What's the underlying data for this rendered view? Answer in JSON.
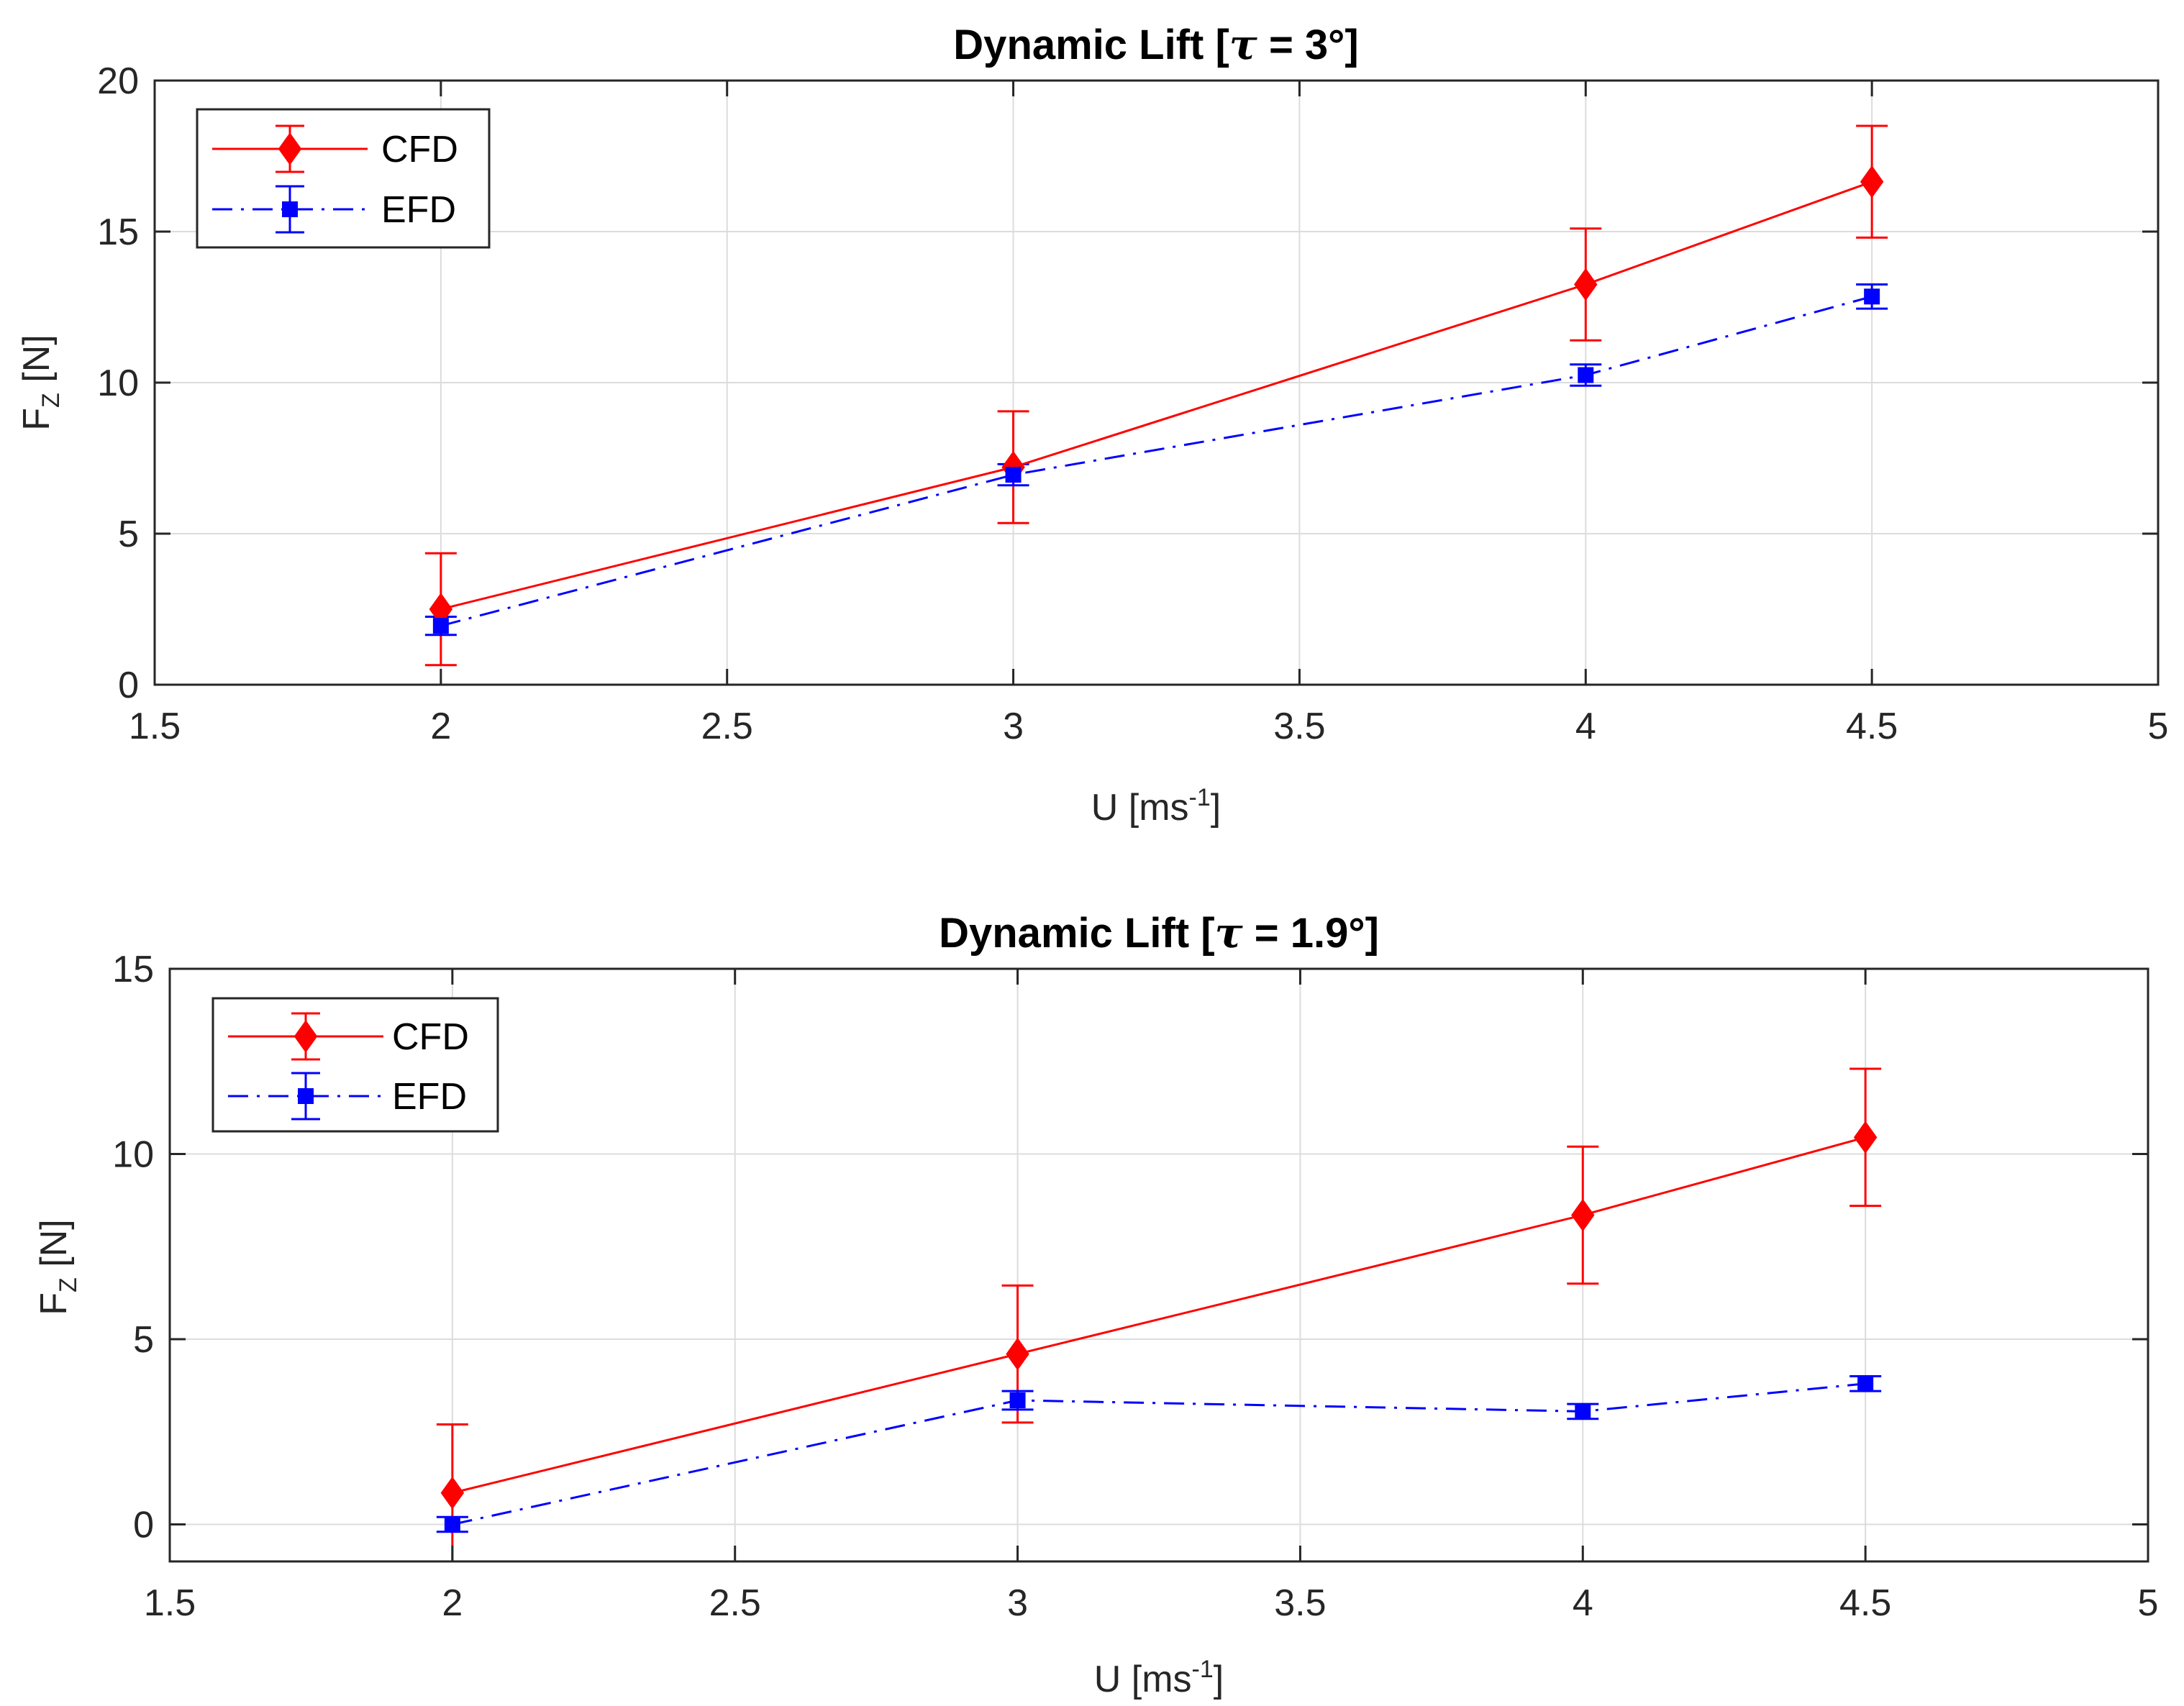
{
  "chart_data": [
    {
      "type": "line",
      "title_prefix": "Dynamic Lift [",
      "title_symbol": "τ",
      "title_suffix": " = 3°]",
      "xlabel": "U [ms",
      "xlabel_sup": "-1",
      "xlabel_end": "]",
      "ylabel": "F",
      "ylabel_sub": "Z",
      "ylabel_end": " [N]",
      "xlim": [
        1.5,
        5
      ],
      "ylim": [
        0,
        20
      ],
      "xticks": [
        1.5,
        2,
        2.5,
        3,
        3.5,
        4,
        4.5,
        5
      ],
      "yticks": [
        0,
        5,
        10,
        15,
        20
      ],
      "xtick_labels": [
        "1.5",
        "2",
        "2.5",
        "3",
        "3.5",
        "4",
        "4.5",
        "5"
      ],
      "ytick_labels": [
        "0",
        "5",
        "10",
        "15",
        "20"
      ],
      "grid": true,
      "legend_position": "top-left",
      "series": [
        {
          "name": "CFD",
          "color": "#ff0000",
          "style": "solid",
          "marker": "diamond",
          "x": [
            2,
            3,
            4,
            4.5
          ],
          "values": [
            2.5,
            7.2,
            13.25,
            16.65
          ],
          "error": [
            1.85,
            1.85,
            1.85,
            1.85
          ]
        },
        {
          "name": "EFD",
          "color": "#0000ff",
          "style": "dashdot",
          "marker": "square",
          "x": [
            2,
            3,
            4,
            4.5
          ],
          "values": [
            1.95,
            6.95,
            10.25,
            12.85
          ],
          "error": [
            0.3,
            0.35,
            0.35,
            0.4
          ]
        }
      ]
    },
    {
      "type": "line",
      "title_prefix": "Dynamic Lift [",
      "title_symbol": "τ",
      "title_suffix": " = 1.9°]",
      "xlabel": "U [ms",
      "xlabel_sup": "-1",
      "xlabel_end": "]",
      "ylabel": "F",
      "ylabel_sub": "Z",
      "ylabel_end": " [N]",
      "xlim": [
        1.5,
        5
      ],
      "ylim": [
        -1,
        15
      ],
      "xticks": [
        1.5,
        2,
        2.5,
        3,
        3.5,
        4,
        4.5,
        5
      ],
      "yticks": [
        0,
        5,
        10,
        15
      ],
      "xtick_labels": [
        "1.5",
        "2",
        "2.5",
        "3",
        "3.5",
        "4",
        "4.5",
        "5"
      ],
      "ytick_labels": [
        "0",
        "5",
        "10",
        "15"
      ],
      "grid": true,
      "legend_position": "top-left",
      "series": [
        {
          "name": "CFD",
          "color": "#ff0000",
          "style": "solid",
          "marker": "diamond",
          "x": [
            2,
            3,
            4,
            4.5
          ],
          "values": [
            0.85,
            4.6,
            8.35,
            10.45
          ],
          "error": [
            1.85,
            1.85,
            1.85,
            1.85
          ]
        },
        {
          "name": "EFD",
          "color": "#0000ff",
          "style": "dashdot",
          "marker": "square",
          "x": [
            2,
            3,
            4,
            4.5
          ],
          "values": [
            0,
            3.35,
            3.05,
            3.8
          ],
          "error": [
            0.2,
            0.25,
            0.2,
            0.2
          ]
        }
      ]
    }
  ]
}
